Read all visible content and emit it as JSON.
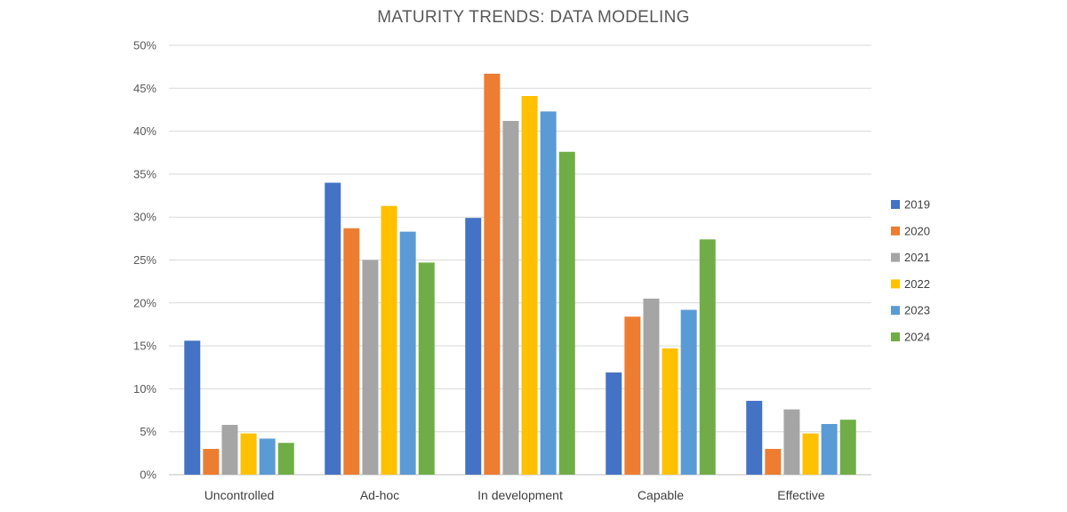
{
  "chart_data": {
    "type": "bar",
    "title": "MATURITY TRENDS: DATA MODELING",
    "xlabel": "",
    "ylabel": "",
    "ylim": [
      0,
      50
    ],
    "yticks": [
      "0%",
      "5%",
      "10%",
      "15%",
      "20%",
      "25%",
      "30%",
      "35%",
      "40%",
      "45%",
      "50%"
    ],
    "grid": true,
    "legend_position": "right",
    "categories": [
      "Uncontrolled",
      "Ad-hoc",
      "In development",
      "Capable",
      "Effective"
    ],
    "series": [
      {
        "name": "2019",
        "color": "#4472C4",
        "values": [
          15.6,
          34.0,
          29.9,
          11.9,
          8.6
        ]
      },
      {
        "name": "2020",
        "color": "#ED7D31",
        "values": [
          3.0,
          28.7,
          46.7,
          18.4,
          3.0
        ]
      },
      {
        "name": "2021",
        "color": "#A5A5A5",
        "values": [
          5.8,
          25.0,
          41.2,
          20.5,
          7.6
        ]
      },
      {
        "name": "2022",
        "color": "#FFC000",
        "values": [
          4.8,
          31.3,
          44.1,
          14.7,
          4.8
        ]
      },
      {
        "name": "2023",
        "color": "#5B9BD5",
        "values": [
          4.2,
          28.3,
          42.3,
          19.2,
          5.9
        ]
      },
      {
        "name": "2024",
        "color": "#70AD47",
        "values": [
          3.7,
          24.7,
          37.6,
          27.4,
          6.4
        ]
      }
    ]
  }
}
